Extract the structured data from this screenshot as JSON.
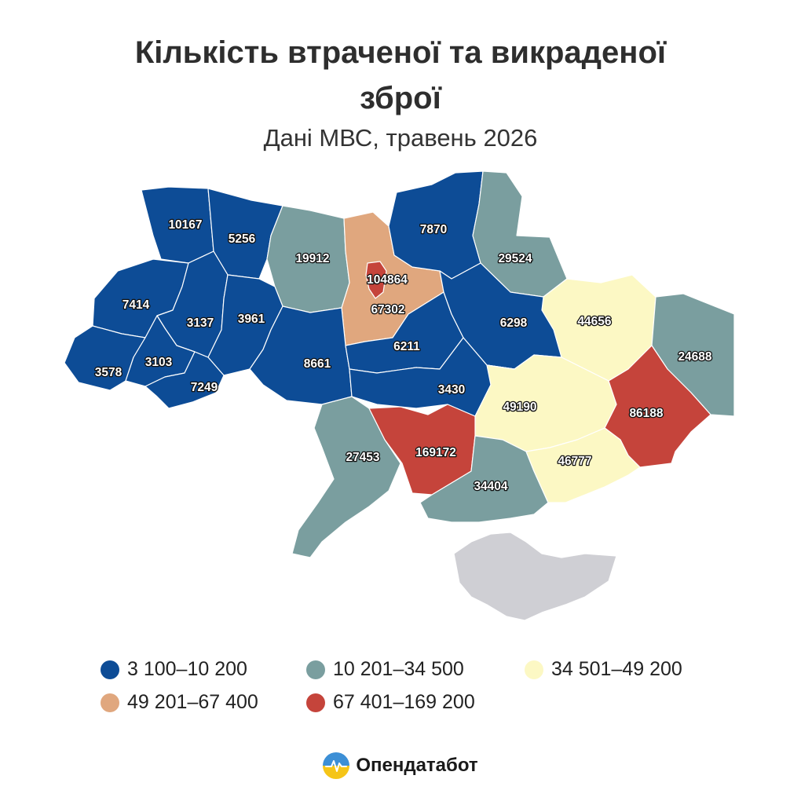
{
  "title": {
    "line1": "Кількість втраченої та викраденої",
    "line2": "зброї"
  },
  "subtitle": "Дані МВС, травень 2026",
  "colors": {
    "bin1": "#0d4c96",
    "bin2": "#7a9e9f",
    "bin3": "#fcf8c4",
    "bin4": "#e0a77e",
    "bin5": "#c5443b",
    "occupied": "#cfcfd4"
  },
  "regions": [
    {
      "name": "Волинська",
      "value": 10167,
      "bin": "bin1"
    },
    {
      "name": "Рівненська",
      "value": 5256,
      "bin": "bin1"
    },
    {
      "name": "Житомирська",
      "value": 19912,
      "bin": "bin2"
    },
    {
      "name": "Київська",
      "value": 67302,
      "bin": "bin4"
    },
    {
      "name": "Київ",
      "value": 104864,
      "bin": "bin5"
    },
    {
      "name": "Чернігівська",
      "value": 7870,
      "bin": "bin1"
    },
    {
      "name": "Сумська",
      "value": 29524,
      "bin": "bin2"
    },
    {
      "name": "Харківська",
      "value": 44656,
      "bin": "bin3"
    },
    {
      "name": "Луганська",
      "value": 24688,
      "bin": "bin2"
    },
    {
      "name": "Львівська",
      "value": 7414,
      "bin": "bin1"
    },
    {
      "name": "Тернопільська",
      "value": 3137,
      "bin": "bin1"
    },
    {
      "name": "Хмельницька",
      "value": 3961,
      "bin": "bin1"
    },
    {
      "name": "Вінницька",
      "value": 8661,
      "bin": "bin1"
    },
    {
      "name": "Черкаська",
      "value": 6211,
      "bin": "bin1"
    },
    {
      "name": "Полтавська",
      "value": 6298,
      "bin": "bin1"
    },
    {
      "name": "Закарпатська",
      "value": 3578,
      "bin": "bin1"
    },
    {
      "name": "Івано-Франківська",
      "value": 3103,
      "bin": "bin1"
    },
    {
      "name": "Чернівецька",
      "value": 7249,
      "bin": "bin1"
    },
    {
      "name": "Кіровоградська",
      "value": 3430,
      "bin": "bin1"
    },
    {
      "name": "Дніпропетровська",
      "value": 49190,
      "bin": "bin3"
    },
    {
      "name": "Донецька",
      "value": 86188,
      "bin": "bin5"
    },
    {
      "name": "Одеська",
      "value": 27453,
      "bin": "bin2"
    },
    {
      "name": "Миколаївська",
      "value": 169172,
      "bin": "bin5"
    },
    {
      "name": "Херсонська",
      "value": 34404,
      "bin": "bin2"
    },
    {
      "name": "Запорізька",
      "value": 46777,
      "bin": "bin3"
    },
    {
      "name": "Крим",
      "value": null,
      "bin": "occupied"
    }
  ],
  "legend": [
    {
      "label": "3 100–10 200",
      "bin": "bin1"
    },
    {
      "label": "10 201–34 500",
      "bin": "bin2"
    },
    {
      "label": "34 501–49 200",
      "bin": "bin3"
    },
    {
      "label": "49 201–67 400",
      "bin": "bin4"
    },
    {
      "label": "67 401–169 200",
      "bin": "bin5"
    }
  ],
  "brand": {
    "name": "Опендатабот",
    "icon": "opendatabot-logo-icon"
  }
}
